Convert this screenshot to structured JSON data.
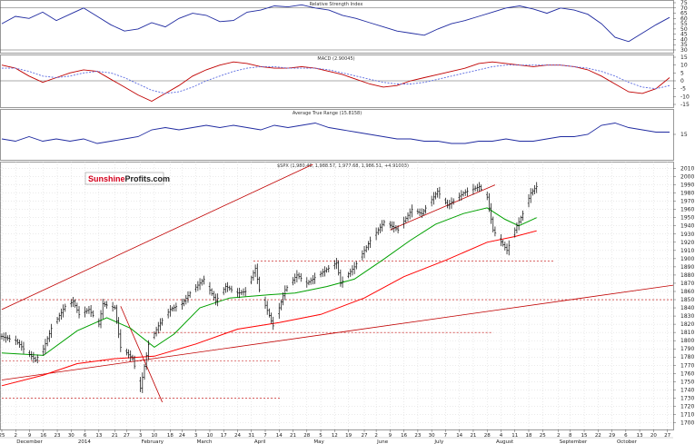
{
  "logo": {
    "part1": "Sunshine",
    "part2": "Profits.com"
  },
  "colors": {
    "price": "#000000",
    "ma_short": "#00a000",
    "ma_long": "#ff0000",
    "trend": "#c00000",
    "indicator": "#1f2aa0",
    "macd_signal": "#5a6ae0",
    "grid": "#cccccc"
  },
  "chart_data": [
    {
      "type": "line",
      "title": "Relative Strength Index",
      "ylim": [
        30,
        75
      ],
      "yticks": [
        "75",
        "70",
        "65",
        "60",
        "55",
        "50",
        "45",
        "40",
        "35",
        "30"
      ],
      "reference_lines": [
        70,
        30
      ],
      "series": [
        {
          "values": [
            55,
            62,
            60,
            66,
            58,
            64,
            70,
            62,
            54,
            48,
            50,
            56,
            52,
            60,
            65,
            63,
            57,
            58,
            66,
            68,
            72,
            71,
            73,
            70,
            68,
            63,
            60,
            56,
            52,
            48,
            46,
            44,
            50,
            55,
            58,
            62,
            66,
            70,
            72,
            69,
            65,
            70,
            68,
            64,
            55,
            42,
            38,
            46,
            54,
            61
          ]
        }
      ]
    },
    {
      "type": "line",
      "title": "MACD (2.90045)",
      "ylim": [
        -15,
        15
      ],
      "yticks": [
        "15",
        "10",
        "5",
        "0",
        "-5",
        "-10",
        "-15"
      ],
      "series": [
        {
          "values": [
            10,
            8,
            3,
            -1,
            2,
            5,
            7,
            6,
            1,
            -4,
            -9,
            -13,
            -8,
            -3,
            3,
            7,
            10,
            12,
            11,
            9,
            8,
            8,
            9,
            8,
            6,
            4,
            1,
            -2,
            -4,
            -3,
            0,
            2,
            4,
            6,
            8,
            11,
            12,
            11,
            10,
            9,
            10,
            10,
            9,
            7,
            3,
            -2,
            -7,
            -8,
            -5,
            2
          ]
        },
        {
          "values": [
            8,
            8,
            6,
            3,
            2,
            3,
            5,
            6,
            5,
            2,
            -2,
            -6,
            -8,
            -7,
            -4,
            0,
            3,
            6,
            8,
            9,
            9,
            8,
            8,
            8,
            7,
            5,
            3,
            1,
            -1,
            -2,
            -2,
            -1,
            1,
            3,
            5,
            7,
            9,
            10,
            10,
            10,
            10,
            10,
            9,
            8,
            6,
            3,
            -1,
            -4,
            -5,
            -3
          ]
        }
      ]
    },
    {
      "type": "line",
      "title": "Average True Range (15.8158)",
      "ylim": [
        5,
        25
      ],
      "yticks": [
        "15"
      ],
      "series": [
        {
          "values": [
            13,
            12,
            14,
            12,
            13,
            12,
            13,
            11,
            12,
            13,
            14,
            17,
            18,
            17,
            18,
            19,
            18,
            19,
            18,
            17,
            19,
            18,
            19,
            20,
            18,
            17,
            16,
            15,
            14,
            13,
            13,
            12,
            12,
            11,
            11,
            12,
            12,
            13,
            12,
            12,
            13,
            14,
            14,
            15,
            19,
            20,
            18,
            17,
            16,
            16
          ]
        }
      ]
    },
    {
      "type": "line",
      "title": "$SPX (1,980.46, 1,988.57, 1,977.68, 1,986.51, +4.91003)",
      "ylim": [
        1695,
        2015
      ],
      "yticks": [
        "2010",
        "2000",
        "1990",
        "1980",
        "1970",
        "1960",
        "1950",
        "1940",
        "1930",
        "1920",
        "1910",
        "1900",
        "1890",
        "1880",
        "1870",
        "1860",
        "1850",
        "1840",
        "1830",
        "1820",
        "1810",
        "1800",
        "1790",
        "1780",
        "1770",
        "1760",
        "1750",
        "1740",
        "1730",
        "1720",
        "1710",
        "1700"
      ],
      "x_start": "2013-11-25",
      "x_end": "2014-10-29",
      "xticks": [
        {
          "label": "25",
          "date": "2013-11-25"
        },
        {
          "label": "2",
          "date": "2013-12-02"
        },
        {
          "label": "9",
          "date": "2013-12-09"
        },
        {
          "label": "16",
          "date": "2013-12-16"
        },
        {
          "label": "23",
          "date": "2013-12-23"
        },
        {
          "label": "30",
          "date": "2013-12-30"
        },
        {
          "label": "6",
          "date": "2014-01-06"
        },
        {
          "label": "13",
          "date": "2014-01-13"
        },
        {
          "label": "21",
          "date": "2014-01-21"
        },
        {
          "label": "27",
          "date": "2014-01-27"
        },
        {
          "label": "3",
          "date": "2014-02-03"
        },
        {
          "label": "10",
          "date": "2014-02-10"
        },
        {
          "label": "18",
          "date": "2014-02-18"
        },
        {
          "label": "24",
          "date": "2014-02-24"
        },
        {
          "label": "3",
          "date": "2014-03-03"
        },
        {
          "label": "10",
          "date": "2014-03-10"
        },
        {
          "label": "17",
          "date": "2014-03-17"
        },
        {
          "label": "24",
          "date": "2014-03-24"
        },
        {
          "label": "31",
          "date": "2014-03-31"
        },
        {
          "label": "7",
          "date": "2014-04-07"
        },
        {
          "label": "14",
          "date": "2014-04-14"
        },
        {
          "label": "21",
          "date": "2014-04-21"
        },
        {
          "label": "28",
          "date": "2014-04-28"
        },
        {
          "label": "5",
          "date": "2014-05-05"
        },
        {
          "label": "12",
          "date": "2014-05-12"
        },
        {
          "label": "19",
          "date": "2014-05-19"
        },
        {
          "label": "27",
          "date": "2014-05-27"
        },
        {
          "label": "2",
          "date": "2014-06-02"
        },
        {
          "label": "9",
          "date": "2014-06-09"
        },
        {
          "label": "16",
          "date": "2014-06-16"
        },
        {
          "label": "23",
          "date": "2014-06-23"
        },
        {
          "label": "30",
          "date": "2014-06-30"
        },
        {
          "label": "7",
          "date": "2014-07-07"
        },
        {
          "label": "14",
          "date": "2014-07-14"
        },
        {
          "label": "21",
          "date": "2014-07-21"
        },
        {
          "label": "28",
          "date": "2014-07-28"
        },
        {
          "label": "4",
          "date": "2014-08-04"
        },
        {
          "label": "11",
          "date": "2014-08-11"
        },
        {
          "label": "18",
          "date": "2014-08-18"
        },
        {
          "label": "25",
          "date": "2014-08-25"
        },
        {
          "label": "2",
          "date": "2014-09-02"
        },
        {
          "label": "8",
          "date": "2014-09-08"
        },
        {
          "label": "15",
          "date": "2014-09-15"
        },
        {
          "label": "22",
          "date": "2014-09-22"
        },
        {
          "label": "29",
          "date": "2014-09-29"
        },
        {
          "label": "6",
          "date": "2014-10-06"
        },
        {
          "label": "13",
          "date": "2014-10-13"
        },
        {
          "label": "20",
          "date": "2014-10-20"
        },
        {
          "label": "27",
          "date": "2014-10-27"
        }
      ],
      "month_labels": [
        {
          "label": "December",
          "date": "2013-12-02"
        },
        {
          "label": "2014",
          "date": "2014-01-02"
        },
        {
          "label": "February",
          "date": "2014-02-03"
        },
        {
          "label": "March",
          "date": "2014-03-03"
        },
        {
          "label": "April",
          "date": "2014-04-01"
        },
        {
          "label": "May",
          "date": "2014-05-01"
        },
        {
          "label": "June",
          "date": "2014-06-02"
        },
        {
          "label": "July",
          "date": "2014-07-01"
        },
        {
          "label": "August",
          "date": "2014-08-01"
        },
        {
          "label": "September",
          "date": "2014-09-02"
        },
        {
          "label": "October",
          "date": "2014-10-01"
        }
      ],
      "price_points": [
        [
          "2013-11-25",
          1805
        ],
        [
          "2013-12-02",
          1800
        ],
        [
          "2013-12-06",
          1790
        ],
        [
          "2013-12-12",
          1776
        ],
        [
          "2013-12-16",
          1790
        ],
        [
          "2013-12-20",
          1815
        ],
        [
          "2013-12-27",
          1842
        ],
        [
          "2013-12-31",
          1848
        ],
        [
          "2014-01-03",
          1832
        ],
        [
          "2014-01-08",
          1838
        ],
        [
          "2014-01-13",
          1820
        ],
        [
          "2014-01-15",
          1845
        ],
        [
          "2014-01-21",
          1840
        ],
        [
          "2014-01-24",
          1792
        ],
        [
          "2014-01-30",
          1778
        ],
        [
          "2014-02-03",
          1742
        ],
        [
          "2014-02-07",
          1795
        ],
        [
          "2014-02-12",
          1818
        ],
        [
          "2014-02-18",
          1838
        ],
        [
          "2014-02-24",
          1845
        ],
        [
          "2014-02-28",
          1858
        ],
        [
          "2014-03-07",
          1875
        ],
        [
          "2014-03-13",
          1848
        ],
        [
          "2014-03-18",
          1866
        ],
        [
          "2014-03-24",
          1858
        ],
        [
          "2014-03-28",
          1860
        ],
        [
          "2014-04-02",
          1888
        ],
        [
          "2014-04-04",
          1862
        ],
        [
          "2014-04-11",
          1818
        ],
        [
          "2014-04-17",
          1862
        ],
        [
          "2014-04-23",
          1880
        ],
        [
          "2014-04-28",
          1870
        ],
        [
          "2014-05-05",
          1882
        ],
        [
          "2014-05-13",
          1895
        ],
        [
          "2014-05-15",
          1870
        ],
        [
          "2014-05-22",
          1890
        ],
        [
          "2014-05-30",
          1922
        ],
        [
          "2014-06-06",
          1945
        ],
        [
          "2014-06-13",
          1935
        ],
        [
          "2014-06-20",
          1960
        ],
        [
          "2014-06-25",
          1955
        ],
        [
          "2014-07-03",
          1982
        ],
        [
          "2014-07-08",
          1965
        ],
        [
          "2014-07-16",
          1980
        ],
        [
          "2014-07-24",
          1988
        ],
        [
          "2014-07-28",
          1975
        ],
        [
          "2014-07-31",
          1935
        ],
        [
          "2014-08-07",
          1910
        ],
        [
          "2014-08-11",
          1935
        ],
        [
          "2014-08-15",
          1955
        ],
        [
          "2014-08-19",
          1980
        ],
        [
          "2014-08-22",
          1988
        ]
      ],
      "ma_short_points": [
        [
          "2013-11-25",
          1785
        ],
        [
          "2013-12-16",
          1782
        ],
        [
          "2014-01-02",
          1812
        ],
        [
          "2014-01-17",
          1828
        ],
        [
          "2014-01-29",
          1815
        ],
        [
          "2014-02-10",
          1792
        ],
        [
          "2014-02-20",
          1808
        ],
        [
          "2014-03-05",
          1840
        ],
        [
          "2014-03-20",
          1852
        ],
        [
          "2014-04-09",
          1856
        ],
        [
          "2014-04-22",
          1858
        ],
        [
          "2014-05-08",
          1866
        ],
        [
          "2014-05-22",
          1875
        ],
        [
          "2014-06-05",
          1898
        ],
        [
          "2014-06-19",
          1922
        ],
        [
          "2014-07-02",
          1942
        ],
        [
          "2014-07-16",
          1955
        ],
        [
          "2014-07-28",
          1962
        ],
        [
          "2014-08-06",
          1948
        ],
        [
          "2014-08-13",
          1940
        ],
        [
          "2014-08-22",
          1950
        ]
      ],
      "ma_long_points": [
        [
          "2013-11-25",
          1745
        ],
        [
          "2013-12-16",
          1758
        ],
        [
          "2014-01-02",
          1772
        ],
        [
          "2014-01-21",
          1778
        ],
        [
          "2014-02-10",
          1781
        ],
        [
          "2014-03-03",
          1796
        ],
        [
          "2014-03-24",
          1814
        ],
        [
          "2014-04-14",
          1822
        ],
        [
          "2014-05-05",
          1832
        ],
        [
          "2014-05-27",
          1852
        ],
        [
          "2014-06-16",
          1878
        ],
        [
          "2014-07-07",
          1898
        ],
        [
          "2014-07-28",
          1920
        ],
        [
          "2014-08-11",
          1927
        ],
        [
          "2014-08-22",
          1934
        ]
      ],
      "trend_lines": [
        {
          "from": [
            "2013-11-25",
            1838
          ],
          "to": [
            "2014-05-01",
            2015
          ]
        },
        {
          "from": [
            "2013-11-25",
            1752
          ],
          "to": [
            "2014-10-31",
            1868
          ]
        },
        {
          "from": [
            "2014-01-24",
            1842
          ],
          "to": [
            "2014-02-14",
            1725
          ]
        },
        {
          "from": [
            "2014-06-09",
            1935
          ],
          "to": [
            "2014-08-01",
            1990
          ]
        }
      ],
      "support_lines": [
        {
          "price": 1897,
          "from": "2014-04-01",
          "to": "2014-08-31"
        },
        {
          "price": 1850,
          "from": "2013-11-25",
          "to": "2014-10-31"
        },
        {
          "price": 1810,
          "from": "2014-02-03",
          "to": "2014-07-31"
        },
        {
          "price": 1775,
          "from": "2013-11-25",
          "to": "2014-04-15"
        },
        {
          "price": 1730,
          "from": "2013-11-25",
          "to": "2014-04-15"
        }
      ]
    }
  ]
}
